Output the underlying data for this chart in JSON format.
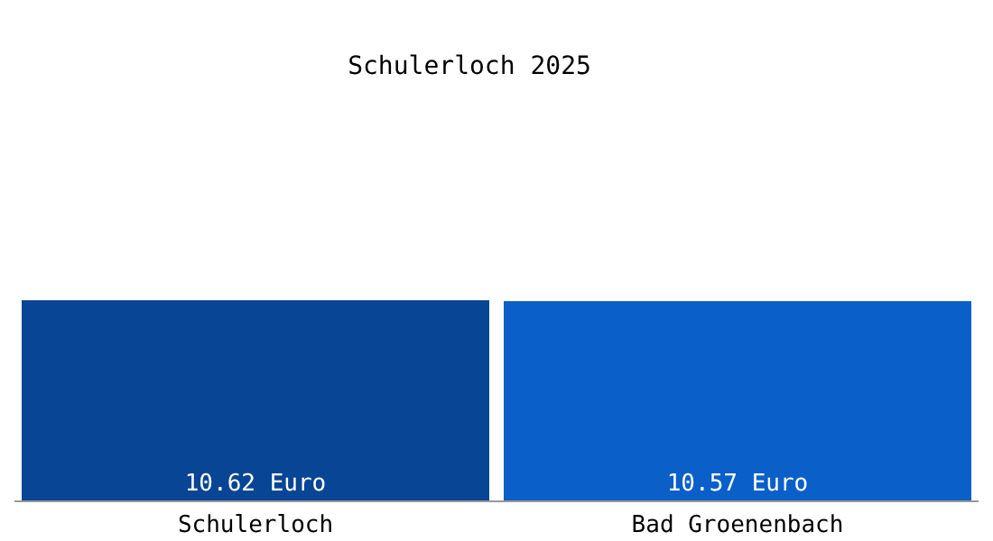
{
  "chart_data": {
    "type": "bar",
    "title": "Schulerloch 2025",
    "categories": [
      "Schulerloch",
      "Bad Groenenbach"
    ],
    "values": [
      10.62,
      10.57
    ],
    "colors": [
      "#084594",
      "#0a5fc8"
    ],
    "value_labels": [
      "10.62 Euro",
      "10.57 Euro"
    ],
    "grid": false,
    "legend": false
  }
}
